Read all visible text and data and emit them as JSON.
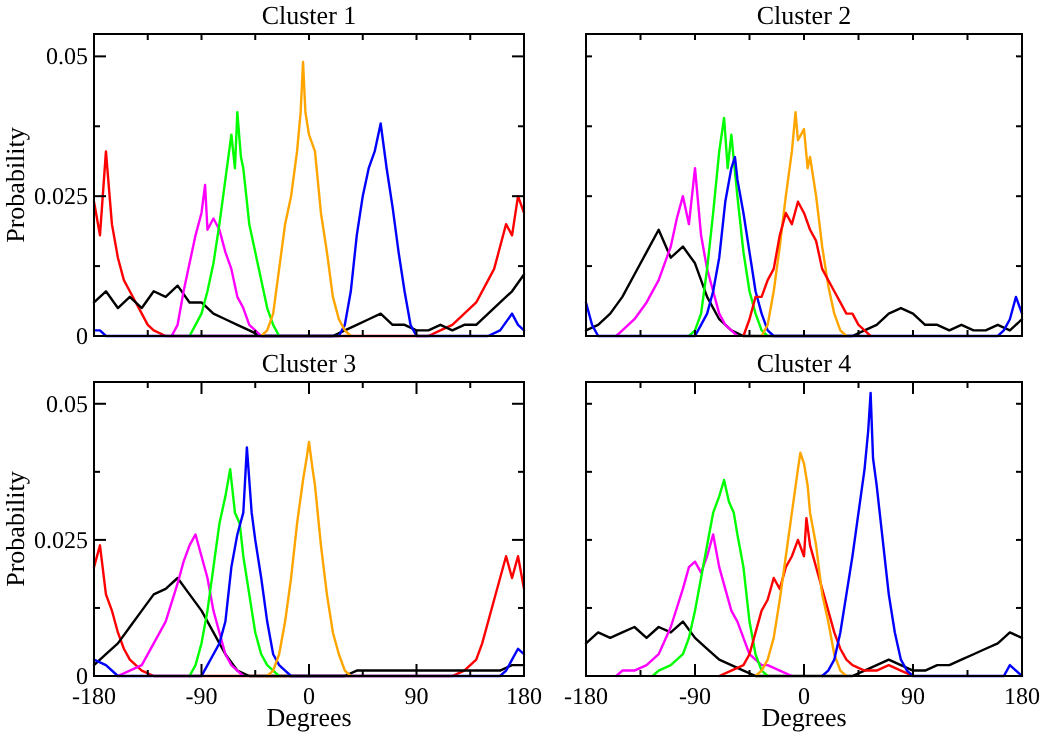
{
  "chart_data": [
    {
      "type": "line",
      "title": "Cluster 1",
      "ylabel": "Probability",
      "xlim": [
        -180,
        180
      ],
      "ylim": [
        0,
        0.054
      ],
      "xticks": [
        {
          "value": -180,
          "label": null
        },
        {
          "value": -135,
          "label": null
        },
        {
          "value": -90,
          "label": null
        },
        {
          "value": -45,
          "label": null
        },
        {
          "value": 0,
          "label": null
        },
        {
          "value": 45,
          "label": null
        },
        {
          "value": 90,
          "label": null
        },
        {
          "value": 135,
          "label": null
        },
        {
          "value": 180,
          "label": null
        }
      ],
      "yticks": [
        0,
        {
          "value": 0.0125,
          "label": null
        },
        0.025,
        {
          "value": 0.0375,
          "label": null
        },
        0.05
      ],
      "tick_labels": "y",
      "series": [
        {
          "color": "#ff0000",
          "x": [
            -180,
            -175,
            -170,
            -165,
            -160,
            -155,
            -150,
            -145,
            -140,
            -135,
            -130,
            -120,
            100,
            110,
            120,
            130,
            140,
            150,
            155,
            160,
            165,
            170,
            175,
            180
          ],
          "values": [
            0.024,
            0.018,
            0.033,
            0.02,
            0.014,
            0.01,
            0.008,
            0.006,
            0.004,
            0.002,
            0.001,
            0,
            0,
            0.001,
            0.002,
            0.004,
            0.006,
            0.01,
            0.012,
            0.016,
            0.02,
            0.018,
            0.025,
            0.022
          ]
        },
        {
          "color": "#000000",
          "x": [
            -180,
            -170,
            -160,
            -150,
            -140,
            -130,
            -120,
            -110,
            -100,
            -90,
            -80,
            -70,
            -60,
            -50,
            -40,
            -30,
            -20,
            -10,
            0,
            10,
            20,
            30,
            40,
            50,
            60,
            70,
            80,
            90,
            100,
            110,
            120,
            130,
            140,
            150,
            160,
            170,
            180
          ],
          "values": [
            0.006,
            0.008,
            0.005,
            0.007,
            0.005,
            0.008,
            0.007,
            0.009,
            0.006,
            0.006,
            0.004,
            0.003,
            0.002,
            0.001,
            0,
            0,
            0,
            0,
            0,
            0,
            0,
            0.001,
            0.002,
            0.003,
            0.004,
            0.002,
            0.002,
            0.001,
            0.001,
            0.002,
            0.001,
            0.002,
            0.002,
            0.004,
            0.006,
            0.008,
            0.011
          ]
        },
        {
          "color": "#ff00ff",
          "x": [
            -115,
            -110,
            -105,
            -100,
            -95,
            -90,
            -87,
            -85,
            -80,
            -75,
            -70,
            -65,
            -60,
            -55,
            -50,
            -45,
            -40
          ],
          "values": [
            0,
            0.002,
            0.008,
            0.013,
            0.018,
            0.022,
            0.027,
            0.019,
            0.021,
            0.019,
            0.015,
            0.012,
            0.007,
            0.005,
            0.002,
            0.001,
            0
          ]
        },
        {
          "color": "#00ff00",
          "x": [
            -100,
            -95,
            -90,
            -85,
            -80,
            -75,
            -70,
            -65,
            -62,
            -60,
            -57,
            -55,
            -50,
            -45,
            -40,
            -35,
            -30,
            -25
          ],
          "values": [
            0,
            0.002,
            0.004,
            0.008,
            0.013,
            0.02,
            0.028,
            0.036,
            0.03,
            0.04,
            0.032,
            0.03,
            0.02,
            0.015,
            0.01,
            0.005,
            0.002,
            0
          ]
        },
        {
          "color": "#0000ff",
          "x": [
            -180,
            -175,
            -170,
            25,
            30,
            35,
            40,
            45,
            50,
            55,
            60,
            65,
            70,
            75,
            80,
            85,
            90,
            150,
            160,
            170,
            175,
            180
          ],
          "values": [
            0.001,
            0.001,
            0,
            0,
            0.002,
            0.008,
            0.018,
            0.025,
            0.03,
            0.033,
            0.038,
            0.03,
            0.023,
            0.015,
            0.008,
            0.002,
            0,
            0,
            0.001,
            0.004,
            0.002,
            0.001
          ]
        },
        {
          "color": "#ffa500",
          "x": [
            -40,
            -35,
            -30,
            -25,
            -20,
            -15,
            -10,
            -7,
            -5,
            -3,
            0,
            5,
            10,
            15,
            20,
            25,
            30,
            35
          ],
          "values": [
            0,
            0.001,
            0.004,
            0.012,
            0.02,
            0.025,
            0.033,
            0.04,
            0.049,
            0.04,
            0.036,
            0.033,
            0.022,
            0.015,
            0.007,
            0.003,
            0.001,
            0
          ]
        }
      ]
    },
    {
      "type": "line",
      "title": "Cluster 2",
      "xlim": [
        -180,
        180
      ],
      "ylim": [
        0,
        0.054
      ],
      "xticks": [
        {
          "value": -180,
          "label": null
        },
        {
          "value": -135,
          "label": null
        },
        {
          "value": -90,
          "label": null
        },
        {
          "value": -45,
          "label": null
        },
        {
          "value": 0,
          "label": null
        },
        {
          "value": 45,
          "label": null
        },
        {
          "value": 90,
          "label": null
        },
        {
          "value": 135,
          "label": null
        },
        {
          "value": 180,
          "label": null
        }
      ],
      "yticks": [
        {
          "value": 0,
          "label": null
        },
        {
          "value": 0.0125,
          "label": null
        },
        {
          "value": 0.025,
          "label": null
        },
        {
          "value": 0.0375,
          "label": null
        },
        {
          "value": 0.05,
          "label": null
        }
      ],
      "tick_labels": false,
      "series": [
        {
          "color": "#000000",
          "x": [
            -180,
            -170,
            -160,
            -150,
            -140,
            -130,
            -120,
            -110,
            -100,
            -90,
            -80,
            -70,
            -60,
            -50,
            40,
            50,
            60,
            70,
            80,
            90,
            100,
            110,
            120,
            130,
            140,
            150,
            160,
            170,
            180
          ],
          "values": [
            0.001,
            0.002,
            0.004,
            0.007,
            0.011,
            0.015,
            0.019,
            0.014,
            0.016,
            0.013,
            0.007,
            0.003,
            0.001,
            0,
            0,
            0.001,
            0.002,
            0.004,
            0.005,
            0.004,
            0.002,
            0.002,
            0.001,
            0.002,
            0.001,
            0.001,
            0.002,
            0.001,
            0.003
          ]
        },
        {
          "color": "#ff00ff",
          "x": [
            -155,
            -150,
            -140,
            -130,
            -120,
            -110,
            -105,
            -100,
            -95,
            -90,
            -85,
            -80,
            -75,
            -70,
            -65,
            -60,
            -55
          ],
          "values": [
            0,
            0.001,
            0.003,
            0.006,
            0.01,
            0.016,
            0.021,
            0.025,
            0.02,
            0.03,
            0.018,
            0.012,
            0.008,
            0.004,
            0.002,
            0.001,
            0
          ]
        },
        {
          "color": "#00ff00",
          "x": [
            -95,
            -90,
            -85,
            -80,
            -75,
            -70,
            -66,
            -63,
            -60,
            -55,
            -50,
            -45,
            -40,
            -35,
            -30
          ],
          "values": [
            0,
            0.001,
            0.004,
            0.012,
            0.022,
            0.033,
            0.039,
            0.03,
            0.036,
            0.025,
            0.015,
            0.008,
            0.004,
            0.001,
            0
          ]
        },
        {
          "color": "#0000ff",
          "x": [
            -180,
            -175,
            -170,
            -90,
            -85,
            -80,
            -75,
            -70,
            -65,
            -60,
            -57,
            -55,
            -50,
            -45,
            -40,
            -35,
            -30,
            -25,
            160,
            165,
            170,
            175,
            180
          ],
          "values": [
            0.006,
            0.002,
            0,
            0,
            0.002,
            0.004,
            0.008,
            0.014,
            0.024,
            0.03,
            0.032,
            0.028,
            0.022,
            0.015,
            0.008,
            0.004,
            0.001,
            0,
            0,
            0.001,
            0.003,
            0.007,
            0.004
          ]
        },
        {
          "color": "#ffa500",
          "x": [
            -35,
            -30,
            -25,
            -20,
            -15,
            -10,
            -7,
            -5,
            0,
            3,
            5,
            10,
            15,
            20,
            25,
            30,
            35
          ],
          "values": [
            0,
            0.002,
            0.008,
            0.016,
            0.025,
            0.033,
            0.04,
            0.035,
            0.037,
            0.03,
            0.032,
            0.025,
            0.016,
            0.009,
            0.004,
            0.001,
            0
          ]
        },
        {
          "color": "#ff0000",
          "x": [
            -50,
            -45,
            -40,
            -35,
            -30,
            -25,
            -20,
            -15,
            -10,
            -5,
            0,
            5,
            10,
            15,
            20,
            25,
            30,
            35,
            40,
            45,
            50,
            55
          ],
          "values": [
            0,
            0.003,
            0.007,
            0.007,
            0.01,
            0.012,
            0.018,
            0.022,
            0.02,
            0.024,
            0.022,
            0.019,
            0.017,
            0.012,
            0.01,
            0.008,
            0.006,
            0.004,
            0.004,
            0.002,
            0.001,
            0
          ]
        }
      ]
    },
    {
      "type": "line",
      "title": "Cluster 3",
      "xlabel": "Degrees",
      "ylabel": "Probability",
      "xlim": [
        -180,
        180
      ],
      "ylim": [
        0,
        0.054
      ],
      "xticks": [
        -180,
        {
          "value": -135,
          "label": null
        },
        -90,
        {
          "value": -45,
          "label": null
        },
        0,
        {
          "value": 45,
          "label": null
        },
        90,
        {
          "value": 135,
          "label": null
        },
        180
      ],
      "yticks": [
        0,
        {
          "value": 0.0125,
          "label": null
        },
        0.025,
        {
          "value": 0.0375,
          "label": null
        },
        0.05
      ],
      "series": [
        {
          "color": "#ff0000",
          "x": [
            -180,
            -175,
            -170,
            -165,
            -160,
            -155,
            -150,
            -145,
            -140,
            -130,
            120,
            130,
            140,
            145,
            150,
            155,
            160,
            165,
            170,
            175,
            180
          ],
          "values": [
            0.02,
            0.024,
            0.015,
            0.012,
            0.008,
            0.005,
            0.003,
            0.002,
            0.001,
            0,
            0,
            0.001,
            0.003,
            0.006,
            0.01,
            0.014,
            0.018,
            0.022,
            0.018,
            0.022,
            0.016
          ]
        },
        {
          "color": "#000000",
          "x": [
            -180,
            -170,
            -160,
            -150,
            -140,
            -130,
            -120,
            -110,
            -100,
            -90,
            -80,
            -70,
            -60,
            -50,
            30,
            40,
            60,
            80,
            100,
            120,
            140,
            160,
            170,
            180
          ],
          "values": [
            0.002,
            0.004,
            0.006,
            0.009,
            0.012,
            0.015,
            0.016,
            0.018,
            0.015,
            0.012,
            0.008,
            0.004,
            0.001,
            0,
            0,
            0.001,
            0.001,
            0.001,
            0.001,
            0.001,
            0.001,
            0.001,
            0.002,
            0.002
          ]
        },
        {
          "color": "#ff00ff",
          "x": [
            -160,
            -150,
            -140,
            -130,
            -120,
            -110,
            -105,
            -100,
            -95,
            -90,
            -85,
            -80,
            -75,
            -70,
            -65,
            -60,
            -55
          ],
          "values": [
            0,
            0.001,
            0.002,
            0.006,
            0.01,
            0.017,
            0.021,
            0.024,
            0.026,
            0.022,
            0.018,
            0.012,
            0.008,
            0.004,
            0.002,
            0.001,
            0
          ]
        },
        {
          "color": "#00ff00",
          "x": [
            -100,
            -95,
            -90,
            -85,
            -80,
            -75,
            -70,
            -66,
            -62,
            -58,
            -55,
            -50,
            -45,
            -40,
            -35,
            -30,
            -25
          ],
          "values": [
            0,
            0.002,
            0.006,
            0.012,
            0.02,
            0.028,
            0.033,
            0.038,
            0.03,
            0.028,
            0.022,
            0.015,
            0.008,
            0.004,
            0.002,
            0.001,
            0
          ]
        },
        {
          "color": "#0000ff",
          "x": [
            -180,
            -170,
            -160,
            -90,
            -85,
            -80,
            -75,
            -70,
            -65,
            -60,
            -55,
            -52,
            -48,
            -45,
            -40,
            -35,
            -30,
            -25,
            -20,
            -15,
            160,
            165,
            170,
            175,
            180
          ],
          "values": [
            0.003,
            0.002,
            0,
            0,
            0.002,
            0.004,
            0.006,
            0.01,
            0.02,
            0.026,
            0.03,
            0.042,
            0.03,
            0.025,
            0.018,
            0.01,
            0.004,
            0.002,
            0.001,
            0,
            0,
            0.001,
            0.003,
            0.005,
            0.004
          ]
        },
        {
          "color": "#ffa500",
          "x": [
            -35,
            -30,
            -25,
            -20,
            -15,
            -10,
            -5,
            -2,
            0,
            3,
            5,
            10,
            15,
            20,
            25,
            30,
            35
          ],
          "values": [
            0,
            0.001,
            0.004,
            0.01,
            0.018,
            0.028,
            0.036,
            0.04,
            0.043,
            0.038,
            0.035,
            0.024,
            0.015,
            0.008,
            0.004,
            0.001,
            0
          ]
        }
      ]
    },
    {
      "type": "line",
      "title": "Cluster 4",
      "xlabel": "Degrees",
      "xlim": [
        -180,
        180
      ],
      "ylim": [
        0,
        0.054
      ],
      "xticks": [
        -180,
        {
          "value": -135,
          "label": null
        },
        -90,
        {
          "value": -45,
          "label": null
        },
        0,
        {
          "value": 45,
          "label": null
        },
        90,
        {
          "value": 135,
          "label": null
        },
        180
      ],
      "yticks": [
        {
          "value": 0,
          "label": null
        },
        {
          "value": 0.0125,
          "label": null
        },
        {
          "value": 0.025,
          "label": null
        },
        {
          "value": 0.0375,
          "label": null
        },
        {
          "value": 0.05,
          "label": null
        }
      ],
      "tick_labels": "x",
      "series": [
        {
          "color": "#000000",
          "x": [
            -180,
            -170,
            -160,
            -150,
            -140,
            -130,
            -120,
            -110,
            -100,
            -90,
            -80,
            -70,
            -60,
            -50,
            -40,
            40,
            50,
            60,
            70,
            80,
            90,
            100,
            110,
            120,
            130,
            140,
            150,
            160,
            170,
            180
          ],
          "values": [
            0.006,
            0.008,
            0.007,
            0.008,
            0.009,
            0.007,
            0.009,
            0.008,
            0.01,
            0.007,
            0.005,
            0.003,
            0.002,
            0.001,
            0,
            0,
            0.001,
            0.002,
            0.003,
            0.002,
            0.001,
            0.001,
            0.002,
            0.002,
            0.003,
            0.004,
            0.005,
            0.006,
            0.008,
            0.007
          ]
        },
        {
          "color": "#ff00ff",
          "x": [
            -155,
            -150,
            -140,
            -130,
            -120,
            -110,
            -100,
            -95,
            -90,
            -85,
            -80,
            -75,
            -70,
            -65,
            -60,
            -55,
            -50,
            -45,
            -40,
            -35,
            -30,
            -20,
            -10
          ],
          "values": [
            0,
            0.001,
            0.001,
            0.002,
            0.004,
            0.009,
            0.016,
            0.02,
            0.021,
            0.019,
            0.022,
            0.026,
            0.02,
            0.016,
            0.012,
            0.01,
            0.007,
            0.004,
            0.003,
            0.002,
            0.002,
            0.001,
            0
          ]
        },
        {
          "color": "#00ff00",
          "x": [
            -125,
            -120,
            -110,
            -100,
            -95,
            -90,
            -85,
            -80,
            -75,
            -70,
            -66,
            -62,
            -58,
            -55,
            -50,
            -45,
            -40,
            -35,
            -30
          ],
          "values": [
            0,
            0.001,
            0.002,
            0.004,
            0.007,
            0.012,
            0.018,
            0.024,
            0.03,
            0.033,
            0.036,
            0.032,
            0.03,
            0.026,
            0.02,
            0.01,
            0.004,
            0.001,
            0
          ]
        },
        {
          "color": "#ff0000",
          "x": [
            -70,
            -60,
            -50,
            -45,
            -40,
            -35,
            -30,
            -25,
            -20,
            -15,
            -10,
            -5,
            0,
            2,
            5,
            10,
            15,
            20,
            25,
            30,
            35,
            40,
            50,
            60,
            70,
            80,
            90
          ],
          "values": [
            0,
            0.001,
            0.002,
            0.004,
            0.008,
            0.012,
            0.014,
            0.018,
            0.016,
            0.02,
            0.022,
            0.025,
            0.022,
            0.029,
            0.024,
            0.02,
            0.016,
            0.012,
            0.008,
            0.005,
            0.003,
            0.002,
            0.001,
            0.001,
            0.002,
            0.001,
            0
          ]
        },
        {
          "color": "#ffa500",
          "x": [
            -40,
            -35,
            -30,
            -25,
            -20,
            -15,
            -10,
            -5,
            -3,
            0,
            3,
            5,
            10,
            15,
            20,
            25,
            30,
            35
          ],
          "values": [
            0,
            0.001,
            0.003,
            0.007,
            0.014,
            0.022,
            0.03,
            0.038,
            0.041,
            0.039,
            0.035,
            0.03,
            0.024,
            0.015,
            0.01,
            0.004,
            0.001,
            0
          ]
        },
        {
          "color": "#0000ff",
          "x": [
            15,
            20,
            25,
            30,
            35,
            40,
            45,
            50,
            53,
            55,
            57,
            60,
            65,
            70,
            75,
            80,
            85,
            90,
            165,
            170,
            175,
            180
          ],
          "values": [
            0,
            0.001,
            0.003,
            0.008,
            0.015,
            0.022,
            0.03,
            0.038,
            0.045,
            0.052,
            0.04,
            0.035,
            0.025,
            0.015,
            0.008,
            0.003,
            0.001,
            0,
            0,
            0.002,
            0.001,
            0
          ]
        }
      ]
    }
  ]
}
